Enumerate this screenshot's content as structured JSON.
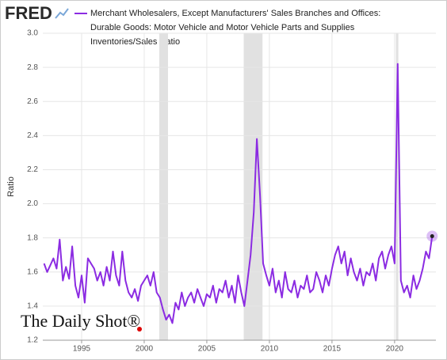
{
  "brand": "FRED",
  "watermark": "The Daily Shot®",
  "chart_data": {
    "type": "line",
    "title_lines": [
      "Merchant Wholesalers, Except Manufacturers' Sales Branches and Offices:",
      "Durable Goods: Motor Vehicle and Motor Vehicle Parts and Supplies",
      "Inventories/Sales Ratio"
    ],
    "y_label": "Ratio",
    "grid": true,
    "shaded_periods": [
      [
        2001.2,
        2001.9
      ],
      [
        2007.95,
        2009.45
      ],
      [
        2020.1,
        2020.3
      ]
    ],
    "xlim": [
      1991.9,
      2023.3
    ],
    "xticks": [
      1995,
      2000,
      2005,
      2010,
      2015,
      2020
    ],
    "ylim": [
      1.2,
      3.0
    ],
    "yticks": [
      1.2,
      1.4,
      1.6,
      1.8,
      {
        "value": 2,
        "label": "2.0"
      },
      2.2,
      2.4,
      2.6,
      2.8,
      {
        "value": 3,
        "label": "3.0"
      }
    ],
    "x": [
      1992,
      1992.25,
      1992.5,
      1992.75,
      1993,
      1993.25,
      1993.5,
      1993.75,
      1994,
      1994.25,
      1994.5,
      1994.75,
      1995,
      1995.25,
      1995.5,
      1995.75,
      1996,
      1996.25,
      1996.5,
      1996.75,
      1997,
      1997.25,
      1997.5,
      1997.75,
      1998,
      1998.25,
      1998.5,
      1998.75,
      1999,
      1999.25,
      1999.5,
      1999.75,
      2000,
      2000.25,
      2000.5,
      2000.75,
      2001,
      2001.25,
      2001.5,
      2001.75,
      2002,
      2002.25,
      2002.5,
      2002.75,
      2003,
      2003.25,
      2003.5,
      2003.75,
      2004,
      2004.25,
      2004.5,
      2004.75,
      2005,
      2005.25,
      2005.5,
      2005.75,
      2006,
      2006.25,
      2006.5,
      2006.75,
      2007,
      2007.25,
      2007.5,
      2007.75,
      2008,
      2008.25,
      2008.5,
      2008.75,
      2009,
      2009.25,
      2009.5,
      2009.75,
      2010,
      2010.25,
      2010.5,
      2010.75,
      2011,
      2011.25,
      2011.5,
      2011.75,
      2012,
      2012.25,
      2012.5,
      2012.75,
      2013,
      2013.25,
      2013.5,
      2013.75,
      2014,
      2014.25,
      2014.5,
      2014.75,
      2015,
      2015.25,
      2015.5,
      2015.75,
      2016,
      2016.25,
      2016.5,
      2016.75,
      2017,
      2017.25,
      2017.5,
      2017.75,
      2018,
      2018.25,
      2018.5,
      2018.75,
      2019,
      2019.25,
      2019.5,
      2019.75,
      2020,
      2020.25,
      2020.5,
      2020.75,
      2021,
      2021.25,
      2021.5,
      2021.75,
      2022,
      2022.25,
      2022.5,
      2022.75,
      2023
    ],
    "series": [
      {
        "name": "Inventories/Sales Ratio",
        "color": "#8b2be2",
        "values": [
          1.65,
          1.6,
          1.64,
          1.68,
          1.62,
          1.79,
          1.55,
          1.63,
          1.56,
          1.75,
          1.52,
          1.45,
          1.58,
          1.42,
          1.68,
          1.65,
          1.62,
          1.55,
          1.6,
          1.52,
          1.63,
          1.55,
          1.72,
          1.58,
          1.52,
          1.72,
          1.55,
          1.48,
          1.45,
          1.5,
          1.43,
          1.52,
          1.55,
          1.58,
          1.52,
          1.6,
          1.48,
          1.45,
          1.38,
          1.32,
          1.35,
          1.3,
          1.42,
          1.38,
          1.48,
          1.4,
          1.45,
          1.48,
          1.42,
          1.5,
          1.45,
          1.4,
          1.47,
          1.45,
          1.52,
          1.42,
          1.5,
          1.48,
          1.55,
          1.45,
          1.52,
          1.42,
          1.58,
          1.48,
          1.4,
          1.55,
          1.7,
          1.95,
          2.38,
          2.05,
          1.65,
          1.58,
          1.52,
          1.62,
          1.48,
          1.55,
          1.45,
          1.6,
          1.5,
          1.48,
          1.55,
          1.45,
          1.52,
          1.5,
          1.58,
          1.48,
          1.5,
          1.6,
          1.55,
          1.48,
          1.58,
          1.52,
          1.62,
          1.7,
          1.75,
          1.65,
          1.72,
          1.58,
          1.68,
          1.6,
          1.55,
          1.62,
          1.52,
          1.6,
          1.58,
          1.65,
          1.55,
          1.68,
          1.72,
          1.62,
          1.7,
          1.75,
          1.65,
          2.82,
          1.55,
          1.48,
          1.52,
          1.45,
          1.58,
          1.5,
          1.55,
          1.62,
          1.72,
          1.68,
          1.81
        ]
      }
    ]
  }
}
